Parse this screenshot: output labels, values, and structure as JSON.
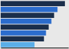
{
  "chart_data": {
    "type": "bar",
    "orientation": "horizontal",
    "categories": [
      null,
      null,
      null,
      null,
      null,
      null,
      null,
      null
    ],
    "values": [
      0.95,
      0.84,
      0.79,
      0.75,
      0.71,
      0.67,
      0.64,
      0.5
    ],
    "colors": [
      "#1a2e4a",
      "#2b6ccc",
      "#1a2e4a",
      "#2b6ccc",
      "#1a2e4a",
      "#2b6ccc",
      "#1a2e4a",
      "#5aaee8"
    ],
    "xlim": [
      0,
      1.0
    ],
    "tick_labels": false
  }
}
